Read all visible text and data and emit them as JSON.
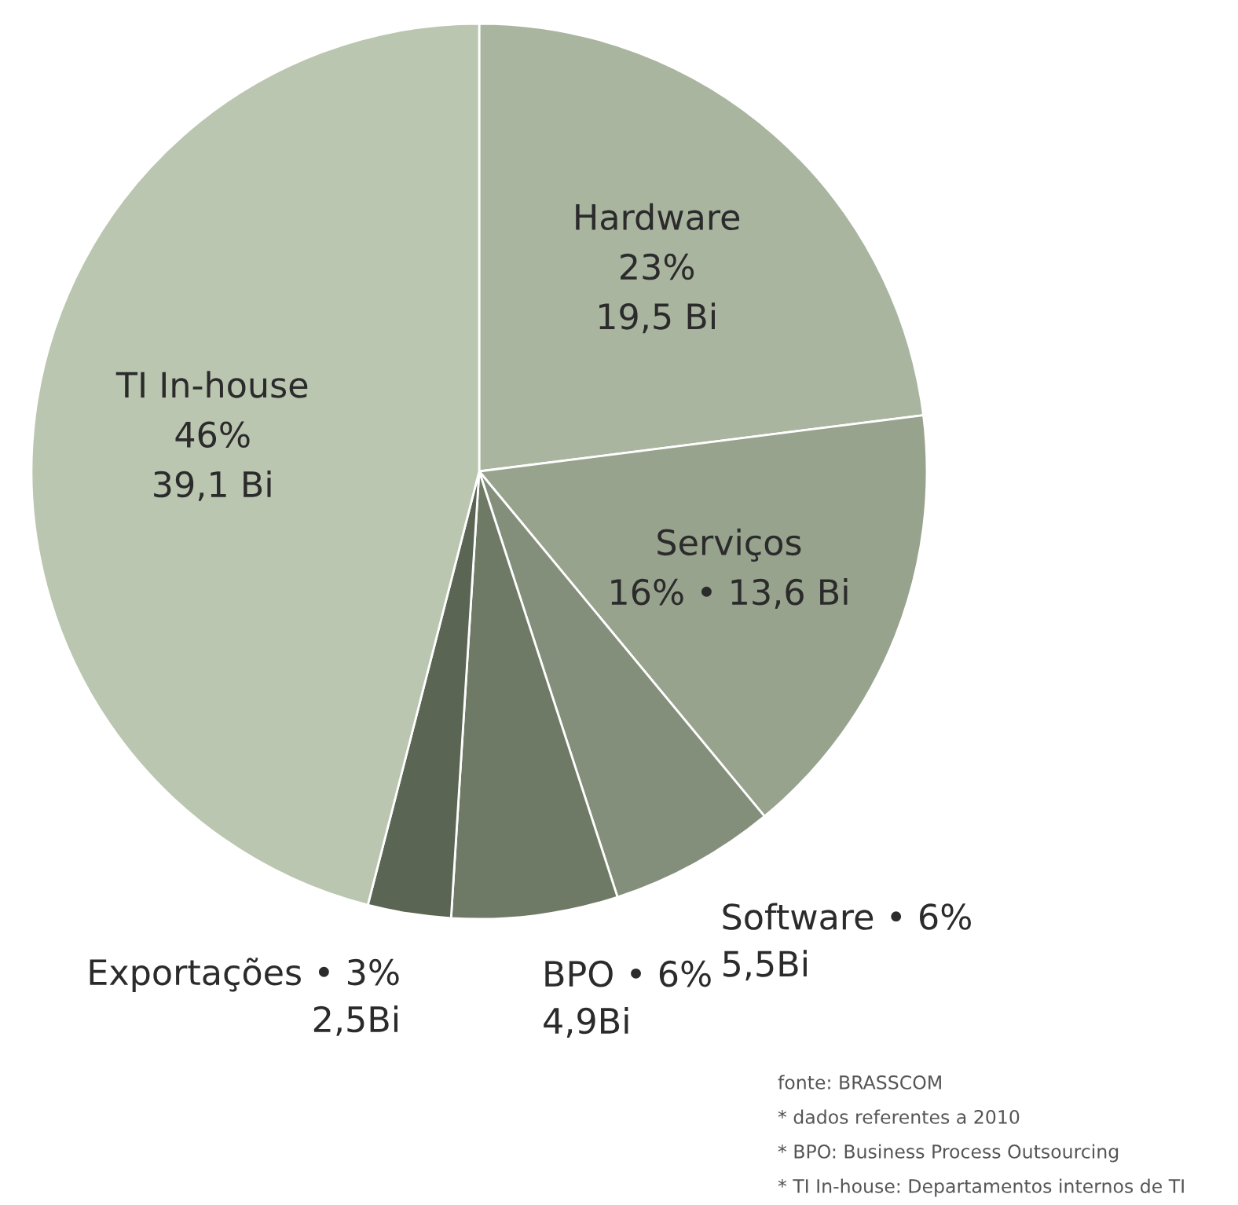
{
  "chart_data": {
    "type": "pie",
    "categories": [
      "Hardware",
      "Serviços",
      "Software",
      "BPO",
      "Exportações",
      "TI In-house"
    ],
    "values": [
      23,
      16,
      6,
      6,
      3,
      46
    ],
    "value_labels": [
      "\n23%\n19,5 Bi",
      "\n16% • 13,6 Bi",
      " • 6%\n5,5Bi",
      " • 6%\n4,9Bi",
      " • 3%\n2,5Bi",
      "\n46%\n39,1 Bi"
    ],
    "colors": [
      "#aab5a0",
      "#98a38e",
      "#848f7b",
      "#6f7a66",
      "#5b6553",
      "#bbc6b0"
    ],
    "annotations": [
      "fonte: BRASSCOM",
      "* dados referentes a 2010",
      "* BPO: Business Process Outsourcing",
      "* TI In-house: Departamentos internos de TI"
    ]
  }
}
